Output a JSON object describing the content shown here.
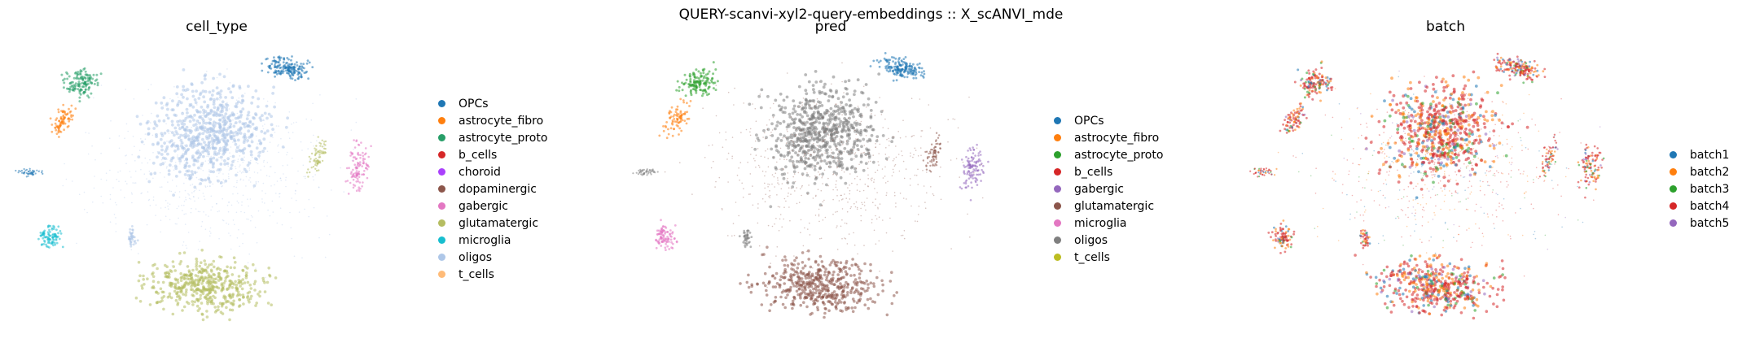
{
  "suptitle": "QUERY-scanvi-xyl2-query-embeddings :: X_scANVI_mde",
  "chart_data": [
    {
      "type": "scatter",
      "title": "cell_type",
      "legend": [
        {
          "label": "OPCs",
          "color": "#1f77b4"
        },
        {
          "label": "astrocyte_fibro",
          "color": "#ff7f0e"
        },
        {
          "label": "astrocyte_proto",
          "color": "#279e68"
        },
        {
          "label": "b_cells",
          "color": "#d62728"
        },
        {
          "label": "choroid",
          "color": "#aa40fc"
        },
        {
          "label": "dopaminergic",
          "color": "#8c564b"
        },
        {
          "label": "gabergic",
          "color": "#e377c2"
        },
        {
          "label": "glutamatergic",
          "color": "#b5bd61"
        },
        {
          "label": "microglia",
          "color": "#17becf"
        },
        {
          "label": "oligos",
          "color": "#aec7e8"
        },
        {
          "label": "t_cells",
          "color": "#ffbb78"
        }
      ],
      "legend_placement": "right",
      "axes": "off"
    },
    {
      "type": "scatter",
      "title": "pred",
      "legend": [
        {
          "label": "OPCs",
          "color": "#1f77b4"
        },
        {
          "label": "astrocyte_fibro",
          "color": "#ff7f0e"
        },
        {
          "label": "astrocyte_proto",
          "color": "#2ca02c"
        },
        {
          "label": "b_cells",
          "color": "#d62728"
        },
        {
          "label": "gabergic",
          "color": "#9467bd"
        },
        {
          "label": "glutamatergic",
          "color": "#8c564b"
        },
        {
          "label": "microglia",
          "color": "#e377c2"
        },
        {
          "label": "oligos",
          "color": "#7f7f7f"
        },
        {
          "label": "t_cells",
          "color": "#bcbd22"
        }
      ],
      "legend_placement": "right",
      "axes": "off"
    },
    {
      "type": "scatter",
      "title": "batch",
      "legend": [
        {
          "label": "batch1",
          "color": "#1f77b4"
        },
        {
          "label": "batch2",
          "color": "#ff7f0e"
        },
        {
          "label": "batch3",
          "color": "#2ca02c"
        },
        {
          "label": "batch4",
          "color": "#d62728"
        },
        {
          "label": "batch5",
          "color": "#9467bd"
        }
      ],
      "legend_placement": "right",
      "axes": "off"
    }
  ]
}
